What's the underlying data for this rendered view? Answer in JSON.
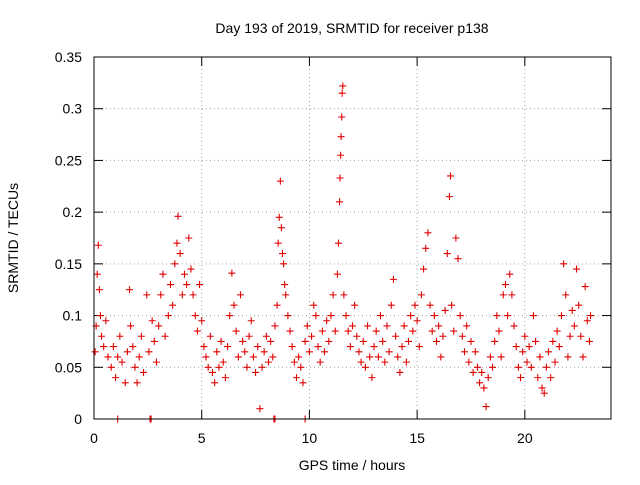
{
  "chart_data": {
    "type": "scatter",
    "title": "Day 193 of 2019, SRMTID for receiver p138",
    "xlabel": "GPS time / hours",
    "ylabel": "SRMTID / TECUs",
    "xlim": [
      0,
      24
    ],
    "ylim": [
      0,
      0.35
    ],
    "xticks": [
      0,
      5,
      10,
      15,
      20
    ],
    "xtick_labels": [
      "0",
      "5",
      "10",
      "15",
      "20"
    ],
    "yticks": [
      0,
      0.05,
      0.1,
      0.15,
      0.2,
      0.25,
      0.3,
      0.35
    ],
    "ytick_labels": [
      "0",
      "0.05",
      "0.1",
      "0.15",
      "0.2",
      "0.25",
      "0.3",
      "0.35"
    ],
    "grid": true,
    "marker": "plus",
    "color": "#e00000",
    "series": [
      {
        "name": "SRMTID",
        "points": [
          [
            0.05,
            0.065
          ],
          [
            0.1,
            0.09
          ],
          [
            0.15,
            0.14
          ],
          [
            0.2,
            0.168
          ],
          [
            0.25,
            0.125
          ],
          [
            0.3,
            0.1
          ],
          [
            0.35,
            0.08
          ],
          [
            0.45,
            0.07
          ],
          [
            0.55,
            0.095
          ],
          [
            0.65,
            0.06
          ],
          [
            0.8,
            0.05
          ],
          [
            0.9,
            0.07
          ],
          [
            1.0,
            0.04
          ],
          [
            1.1,
            0.06
          ],
          [
            1.2,
            0.08
          ],
          [
            1.3,
            0.055
          ],
          [
            1.45,
            0.035
          ],
          [
            1.55,
            0.065
          ],
          [
            1.65,
            0.125
          ],
          [
            1.7,
            0.09
          ],
          [
            1.8,
            0.07
          ],
          [
            1.9,
            0.05
          ],
          [
            2.0,
            0.035
          ],
          [
            2.1,
            0.06
          ],
          [
            2.2,
            0.08
          ],
          [
            2.3,
            0.045
          ],
          [
            2.45,
            0.12
          ],
          [
            2.55,
            0.065
          ],
          [
            2.7,
            0.095
          ],
          [
            2.8,
            0.075
          ],
          [
            2.9,
            0.055
          ],
          [
            3.0,
            0.09
          ],
          [
            3.1,
            0.12
          ],
          [
            3.2,
            0.14
          ],
          [
            3.3,
            0.08
          ],
          [
            3.45,
            0.1
          ],
          [
            3.55,
            0.13
          ],
          [
            3.65,
            0.11
          ],
          [
            3.75,
            0.15
          ],
          [
            3.85,
            0.17
          ],
          [
            3.9,
            0.196
          ],
          [
            4.0,
            0.16
          ],
          [
            4.1,
            0.12
          ],
          [
            4.2,
            0.14
          ],
          [
            4.3,
            0.13
          ],
          [
            4.4,
            0.175
          ],
          [
            4.5,
            0.145
          ],
          [
            4.6,
            0.12
          ],
          [
            4.7,
            0.1
          ],
          [
            4.8,
            0.085
          ],
          [
            4.9,
            0.13
          ],
          [
            5.0,
            0.095
          ],
          [
            5.1,
            0.07
          ],
          [
            5.2,
            0.06
          ],
          [
            5.3,
            0.05
          ],
          [
            5.4,
            0.08
          ],
          [
            5.5,
            0.045
          ],
          [
            5.6,
            0.035
          ],
          [
            5.7,
            0.065
          ],
          [
            5.8,
            0.05
          ],
          [
            5.9,
            0.075
          ],
          [
            6.0,
            0.055
          ],
          [
            6.1,
            0.04
          ],
          [
            6.2,
            0.07
          ],
          [
            6.3,
            0.1
          ],
          [
            6.4,
            0.141
          ],
          [
            6.5,
            0.11
          ],
          [
            6.6,
            0.085
          ],
          [
            6.7,
            0.06
          ],
          [
            6.8,
            0.12
          ],
          [
            6.9,
            0.075
          ],
          [
            7.0,
            0.065
          ],
          [
            7.1,
            0.05
          ],
          [
            7.2,
            0.08
          ],
          [
            7.3,
            0.095
          ],
          [
            7.4,
            0.06
          ],
          [
            7.5,
            0.045
          ],
          [
            7.6,
            0.07
          ],
          [
            7.7,
            0.01
          ],
          [
            7.8,
            0.05
          ],
          [
            7.9,
            0.065
          ],
          [
            8.0,
            0.08
          ],
          [
            8.1,
            0.055
          ],
          [
            8.2,
            0.075
          ],
          [
            8.3,
            0.06
          ],
          [
            8.4,
            0.09
          ],
          [
            8.5,
            0.11
          ],
          [
            8.55,
            0.17
          ],
          [
            8.6,
            0.195
          ],
          [
            8.65,
            0.23
          ],
          [
            8.7,
            0.185
          ],
          [
            8.75,
            0.16
          ],
          [
            8.8,
            0.15
          ],
          [
            8.85,
            0.13
          ],
          [
            8.9,
            0.12
          ],
          [
            9.0,
            0.1
          ],
          [
            9.1,
            0.085
          ],
          [
            9.2,
            0.07
          ],
          [
            9.3,
            0.055
          ],
          [
            9.4,
            0.04
          ],
          [
            9.5,
            0.06
          ],
          [
            9.6,
            0.05
          ],
          [
            9.7,
            0.035
          ],
          [
            9.8,
            0.075
          ],
          [
            9.9,
            0.09
          ],
          [
            10.0,
            0.065
          ],
          [
            10.1,
            0.08
          ],
          [
            10.2,
            0.11
          ],
          [
            10.3,
            0.1
          ],
          [
            10.4,
            0.07
          ],
          [
            10.5,
            0.055
          ],
          [
            10.6,
            0.085
          ],
          [
            10.7,
            0.065
          ],
          [
            10.8,
            0.095
          ],
          [
            10.9,
            0.075
          ],
          [
            11.0,
            0.1
          ],
          [
            11.1,
            0.12
          ],
          [
            11.2,
            0.085
          ],
          [
            11.3,
            0.14
          ],
          [
            11.35,
            0.17
          ],
          [
            11.4,
            0.21
          ],
          [
            11.42,
            0.233
          ],
          [
            11.45,
            0.255
          ],
          [
            11.47,
            0.273
          ],
          [
            11.5,
            0.292
          ],
          [
            11.52,
            0.315
          ],
          [
            11.55,
            0.322
          ],
          [
            11.6,
            0.12
          ],
          [
            11.7,
            0.1
          ],
          [
            11.8,
            0.085
          ],
          [
            11.9,
            0.07
          ],
          [
            12.0,
            0.09
          ],
          [
            12.1,
            0.11
          ],
          [
            12.2,
            0.08
          ],
          [
            12.3,
            0.065
          ],
          [
            12.4,
            0.055
          ],
          [
            12.5,
            0.075
          ],
          [
            12.6,
            0.05
          ],
          [
            12.7,
            0.09
          ],
          [
            12.8,
            0.06
          ],
          [
            12.9,
            0.04
          ],
          [
            13.0,
            0.07
          ],
          [
            13.1,
            0.085
          ],
          [
            13.2,
            0.06
          ],
          [
            13.3,
            0.1
          ],
          [
            13.4,
            0.075
          ],
          [
            13.5,
            0.055
          ],
          [
            13.6,
            0.09
          ],
          [
            13.7,
            0.065
          ],
          [
            13.8,
            0.11
          ],
          [
            13.9,
            0.135
          ],
          [
            14.0,
            0.08
          ],
          [
            14.1,
            0.06
          ],
          [
            14.2,
            0.045
          ],
          [
            14.3,
            0.07
          ],
          [
            14.4,
            0.09
          ],
          [
            14.5,
            0.055
          ],
          [
            14.6,
            0.075
          ],
          [
            14.7,
            0.1
          ],
          [
            14.8,
            0.085
          ],
          [
            14.9,
            0.11
          ],
          [
            15.0,
            0.095
          ],
          [
            15.1,
            0.07
          ],
          [
            15.2,
            0.12
          ],
          [
            15.3,
            0.145
          ],
          [
            15.4,
            0.165
          ],
          [
            15.5,
            0.18
          ],
          [
            15.6,
            0.11
          ],
          [
            15.7,
            0.085
          ],
          [
            15.8,
            0.1
          ],
          [
            15.9,
            0.075
          ],
          [
            16.0,
            0.09
          ],
          [
            16.1,
            0.06
          ],
          [
            16.2,
            0.08
          ],
          [
            16.3,
            0.105
          ],
          [
            16.4,
            0.16
          ],
          [
            16.5,
            0.215
          ],
          [
            16.55,
            0.235
          ],
          [
            16.6,
            0.11
          ],
          [
            16.7,
            0.085
          ],
          [
            16.8,
            0.175
          ],
          [
            16.9,
            0.155
          ],
          [
            17.0,
            0.1
          ],
          [
            17.1,
            0.08
          ],
          [
            17.2,
            0.065
          ],
          [
            17.3,
            0.09
          ],
          [
            17.4,
            0.055
          ],
          [
            17.5,
            0.075
          ],
          [
            17.6,
            0.045
          ],
          [
            17.7,
            0.065
          ],
          [
            17.8,
            0.05
          ],
          [
            17.9,
            0.035
          ],
          [
            18.0,
            0.045
          ],
          [
            18.1,
            0.03
          ],
          [
            18.2,
            0.012
          ],
          [
            18.3,
            0.04
          ],
          [
            18.4,
            0.06
          ],
          [
            18.5,
            0.05
          ],
          [
            18.6,
            0.075
          ],
          [
            18.7,
            0.1
          ],
          [
            18.8,
            0.085
          ],
          [
            18.9,
            0.06
          ],
          [
            19.0,
            0.12
          ],
          [
            19.1,
            0.13
          ],
          [
            19.2,
            0.1
          ],
          [
            19.3,
            0.14
          ],
          [
            19.4,
            0.12
          ],
          [
            19.5,
            0.09
          ],
          [
            19.6,
            0.07
          ],
          [
            19.7,
            0.05
          ],
          [
            19.8,
            0.04
          ],
          [
            19.9,
            0.065
          ],
          [
            20.0,
            0.08
          ],
          [
            20.1,
            0.055
          ],
          [
            20.2,
            0.07
          ],
          [
            20.3,
            0.05
          ],
          [
            20.4,
            0.1
          ],
          [
            20.5,
            0.075
          ],
          [
            20.6,
            0.04
          ],
          [
            20.7,
            0.06
          ],
          [
            20.8,
            0.03
          ],
          [
            20.9,
            0.025
          ],
          [
            21.0,
            0.05
          ],
          [
            21.1,
            0.065
          ],
          [
            21.2,
            0.04
          ],
          [
            21.3,
            0.075
          ],
          [
            21.4,
            0.055
          ],
          [
            21.5,
            0.085
          ],
          [
            21.6,
            0.07
          ],
          [
            21.7,
            0.1
          ],
          [
            21.8,
            0.15
          ],
          [
            21.9,
            0.12
          ],
          [
            22.0,
            0.06
          ],
          [
            22.1,
            0.08
          ],
          [
            22.2,
            0.105
          ],
          [
            22.3,
            0.09
          ],
          [
            22.4,
            0.145
          ],
          [
            22.5,
            0.11
          ],
          [
            22.6,
            0.08
          ],
          [
            22.7,
            0.06
          ],
          [
            22.8,
            0.128
          ],
          [
            22.9,
            0.095
          ],
          [
            23.0,
            0.075
          ],
          [
            23.05,
            0.1
          ],
          [
            1.1,
            0
          ],
          [
            2.6,
            0
          ],
          [
            2.65,
            0
          ],
          [
            8.35,
            0
          ],
          [
            8.4,
            0
          ],
          [
            9.8,
            0
          ]
        ]
      }
    ]
  }
}
